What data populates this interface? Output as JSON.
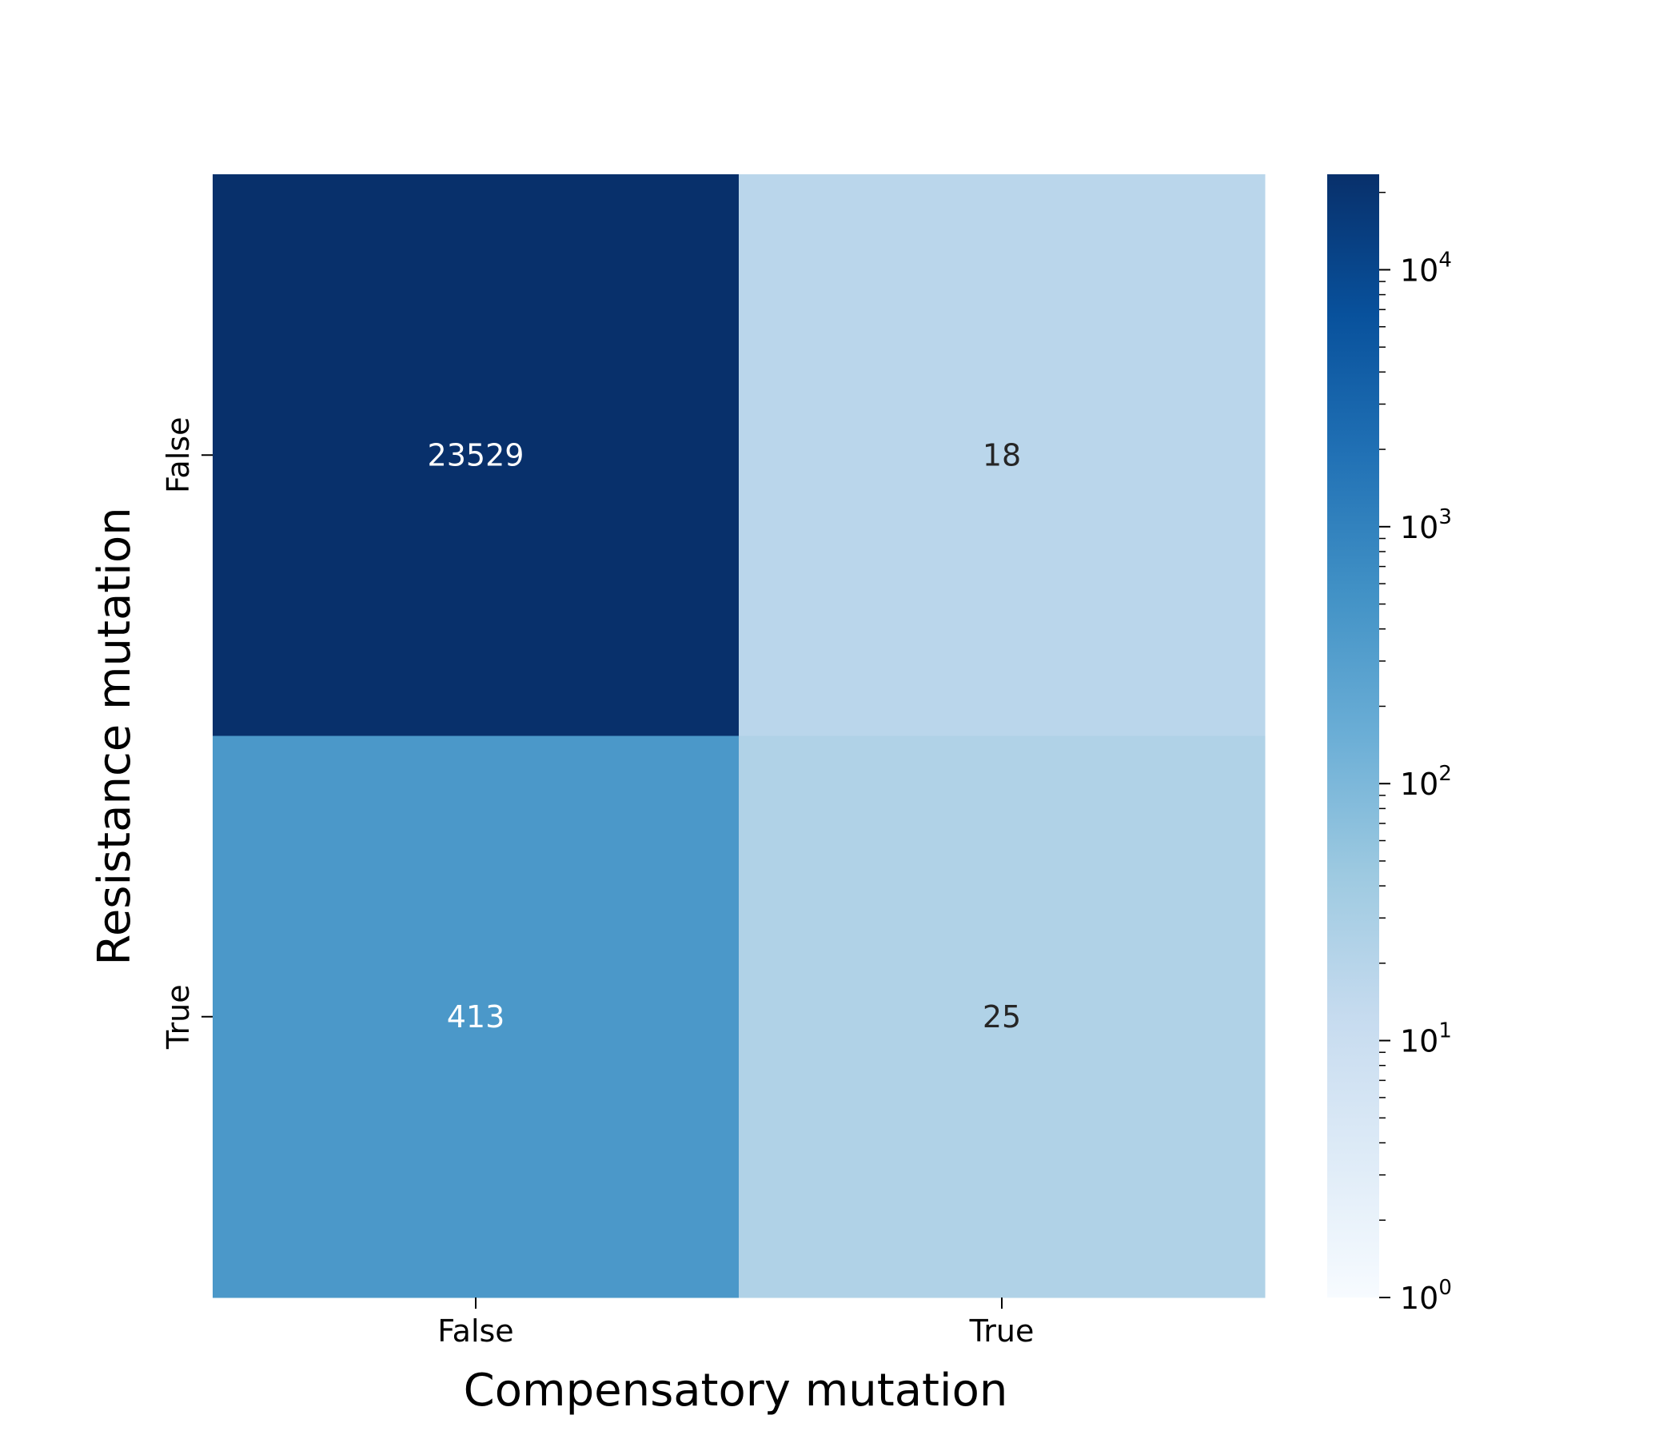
{
  "chart_data": {
    "type": "heatmap",
    "xlabel": "Compensatory mutation",
    "ylabel": "Resistance mutation",
    "x_categories": [
      "False",
      "True"
    ],
    "y_categories": [
      "False",
      "True"
    ],
    "values": [
      [
        23529,
        18
      ],
      [
        413,
        25
      ]
    ],
    "cell_labels": [
      [
        "23529",
        "18"
      ],
      [
        "413",
        "25"
      ]
    ],
    "colorscale": "Blues",
    "colorbar": {
      "scale": "log",
      "range": [
        1,
        23529
      ],
      "ticks": [
        {
          "value": 1,
          "base": "10",
          "exp": "0"
        },
        {
          "value": 10,
          "base": "10",
          "exp": "1"
        },
        {
          "value": 100,
          "base": "10",
          "exp": "2"
        },
        {
          "value": 1000,
          "base": "10",
          "exp": "3"
        },
        {
          "value": 10000,
          "base": "10",
          "exp": "4"
        }
      ]
    }
  }
}
